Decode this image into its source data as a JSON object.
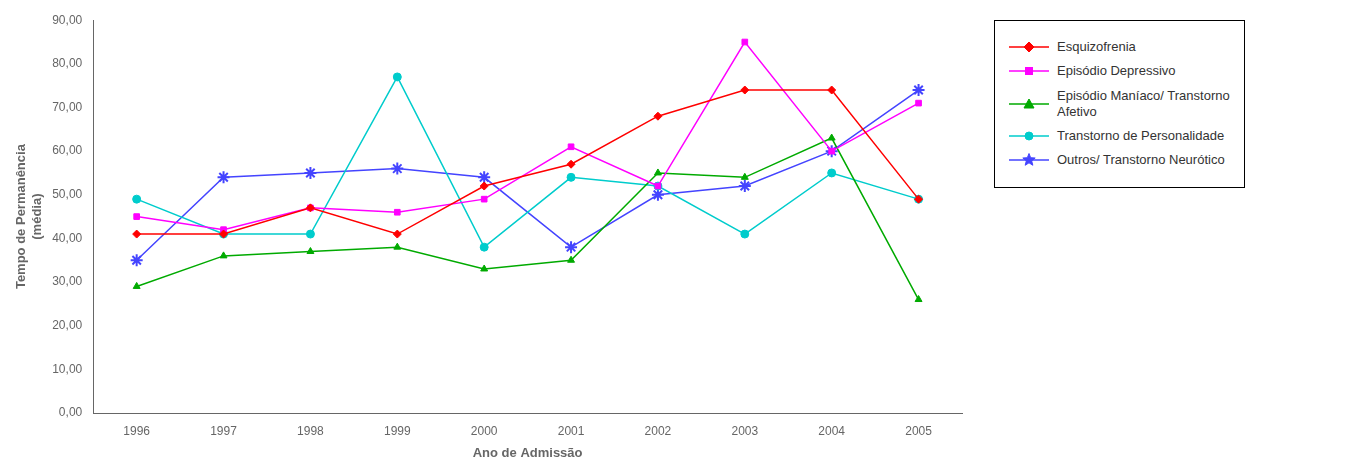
{
  "chart_data": {
    "type": "line",
    "x": [
      1996,
      1997,
      1998,
      1999,
      2000,
      2001,
      2002,
      2003,
      2004,
      2005
    ],
    "xlim": [
      1995.5,
      2005.5
    ],
    "xticks": [
      1996,
      1997,
      1998,
      1999,
      2000,
      2001,
      2002,
      2003,
      2004,
      2005
    ],
    "ylim": [
      0,
      90
    ],
    "yticks": [
      {
        "value": 0,
        "label": "0,00"
      },
      {
        "value": 10,
        "label": "10,00"
      },
      {
        "value": 20,
        "label": "20,00"
      },
      {
        "value": 30,
        "label": "30,00"
      },
      {
        "value": 40,
        "label": "40,00"
      },
      {
        "value": 50,
        "label": "50,00"
      },
      {
        "value": 60,
        "label": "60,00"
      },
      {
        "value": 70,
        "label": "70,00"
      },
      {
        "value": 80,
        "label": "80,00"
      },
      {
        "value": 90,
        "label": "90,00"
      }
    ],
    "xlabel": "Ano de Admissão",
    "ylabel": "Tempo de Permanência\n(média)",
    "grid": false,
    "legend": "right",
    "series": [
      {
        "name": "Esquizofrenia",
        "color": "#ff0000",
        "marker": "diamond",
        "values": [
          41,
          41,
          47,
          41,
          52,
          57,
          68,
          74,
          74,
          49
        ]
      },
      {
        "name": "Episódio Depressivo",
        "color": "#ff00ff",
        "marker": "square",
        "values": [
          45,
          42,
          47,
          46,
          49,
          61,
          52,
          85,
          60,
          71
        ]
      },
      {
        "name": "Episódio Maníaco/ Transtorno\nAfetivo",
        "color": "#00aa00",
        "marker": "triangle",
        "values": [
          29,
          36,
          37,
          38,
          33,
          35,
          55,
          54,
          63,
          26
        ]
      },
      {
        "name": "Transtorno de Personalidade",
        "color": "#00cccc",
        "marker": "circle",
        "values": [
          49,
          41,
          41,
          77,
          38,
          54,
          52,
          41,
          55,
          49
        ]
      },
      {
        "name": "Outros/ Transtorno Neurótico",
        "color": "#4444ff",
        "marker": "star",
        "values": [
          35,
          54,
          55,
          56,
          54,
          38,
          50,
          52,
          60,
          74
        ]
      }
    ]
  }
}
